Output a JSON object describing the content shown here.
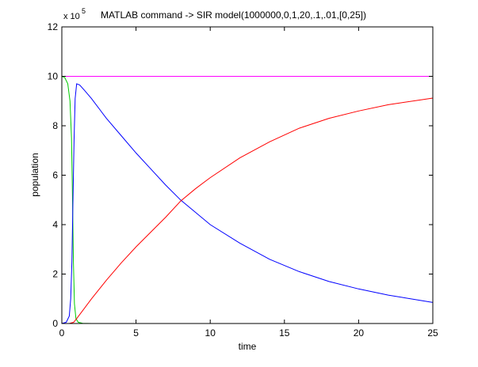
{
  "chart_data": {
    "type": "line",
    "title": "MATLAB command -> SIR model(1000000,0,1,20,.1,.01,[0,25])",
    "xlabel": "time",
    "ylabel": "population",
    "xlim": [
      0,
      25
    ],
    "ylim": [
      0,
      12
    ],
    "y_scale_label": "x 10",
    "y_scale_exponent": "5",
    "xticks": [
      0,
      5,
      10,
      15,
      20,
      25
    ],
    "yticks": [
      0,
      2,
      4,
      6,
      8,
      10,
      12
    ],
    "grid": false,
    "legend": "none",
    "series": [
      {
        "color": "#ff00ff",
        "x": [
          0,
          25
        ],
        "y": [
          10,
          10
        ]
      },
      {
        "color": "#00cc00",
        "x": [
          0,
          0.2,
          0.4,
          0.55,
          0.65,
          0.72,
          0.78,
          0.85,
          0.95,
          1.1,
          1.4,
          2.0,
          2.5
        ],
        "y": [
          10,
          9.95,
          9.7,
          9.0,
          7.5,
          5.0,
          2.5,
          0.8,
          0.2,
          0.05,
          0.01,
          0.0,
          0.0
        ]
      },
      {
        "color": "#0000ff",
        "x": [
          0,
          0.3,
          0.5,
          0.6,
          0.68,
          0.75,
          0.82,
          0.9,
          1.0,
          1.2,
          1.5,
          2,
          3,
          4,
          5,
          6,
          7,
          8,
          9,
          10,
          12,
          14,
          16,
          18,
          20,
          22,
          25
        ],
        "y": [
          0,
          0.05,
          0.3,
          1.0,
          2.5,
          4.9,
          7.4,
          9.1,
          9.7,
          9.65,
          9.45,
          9.1,
          8.3,
          7.6,
          6.9,
          6.25,
          5.6,
          5.0,
          4.5,
          4.0,
          3.25,
          2.6,
          2.1,
          1.7,
          1.4,
          1.15,
          0.85
        ]
      },
      {
        "color": "#ff0000",
        "x": [
          0,
          0.5,
          0.8,
          1.0,
          1.5,
          2,
          3,
          4,
          5,
          6,
          7,
          8,
          9,
          10,
          12,
          14,
          16,
          18,
          20,
          22,
          25
        ],
        "y": [
          0,
          0.0,
          0.05,
          0.2,
          0.6,
          1.0,
          1.75,
          2.45,
          3.1,
          3.7,
          4.3,
          4.95,
          5.45,
          5.9,
          6.7,
          7.35,
          7.9,
          8.3,
          8.6,
          8.85,
          9.12
        ]
      }
    ]
  }
}
